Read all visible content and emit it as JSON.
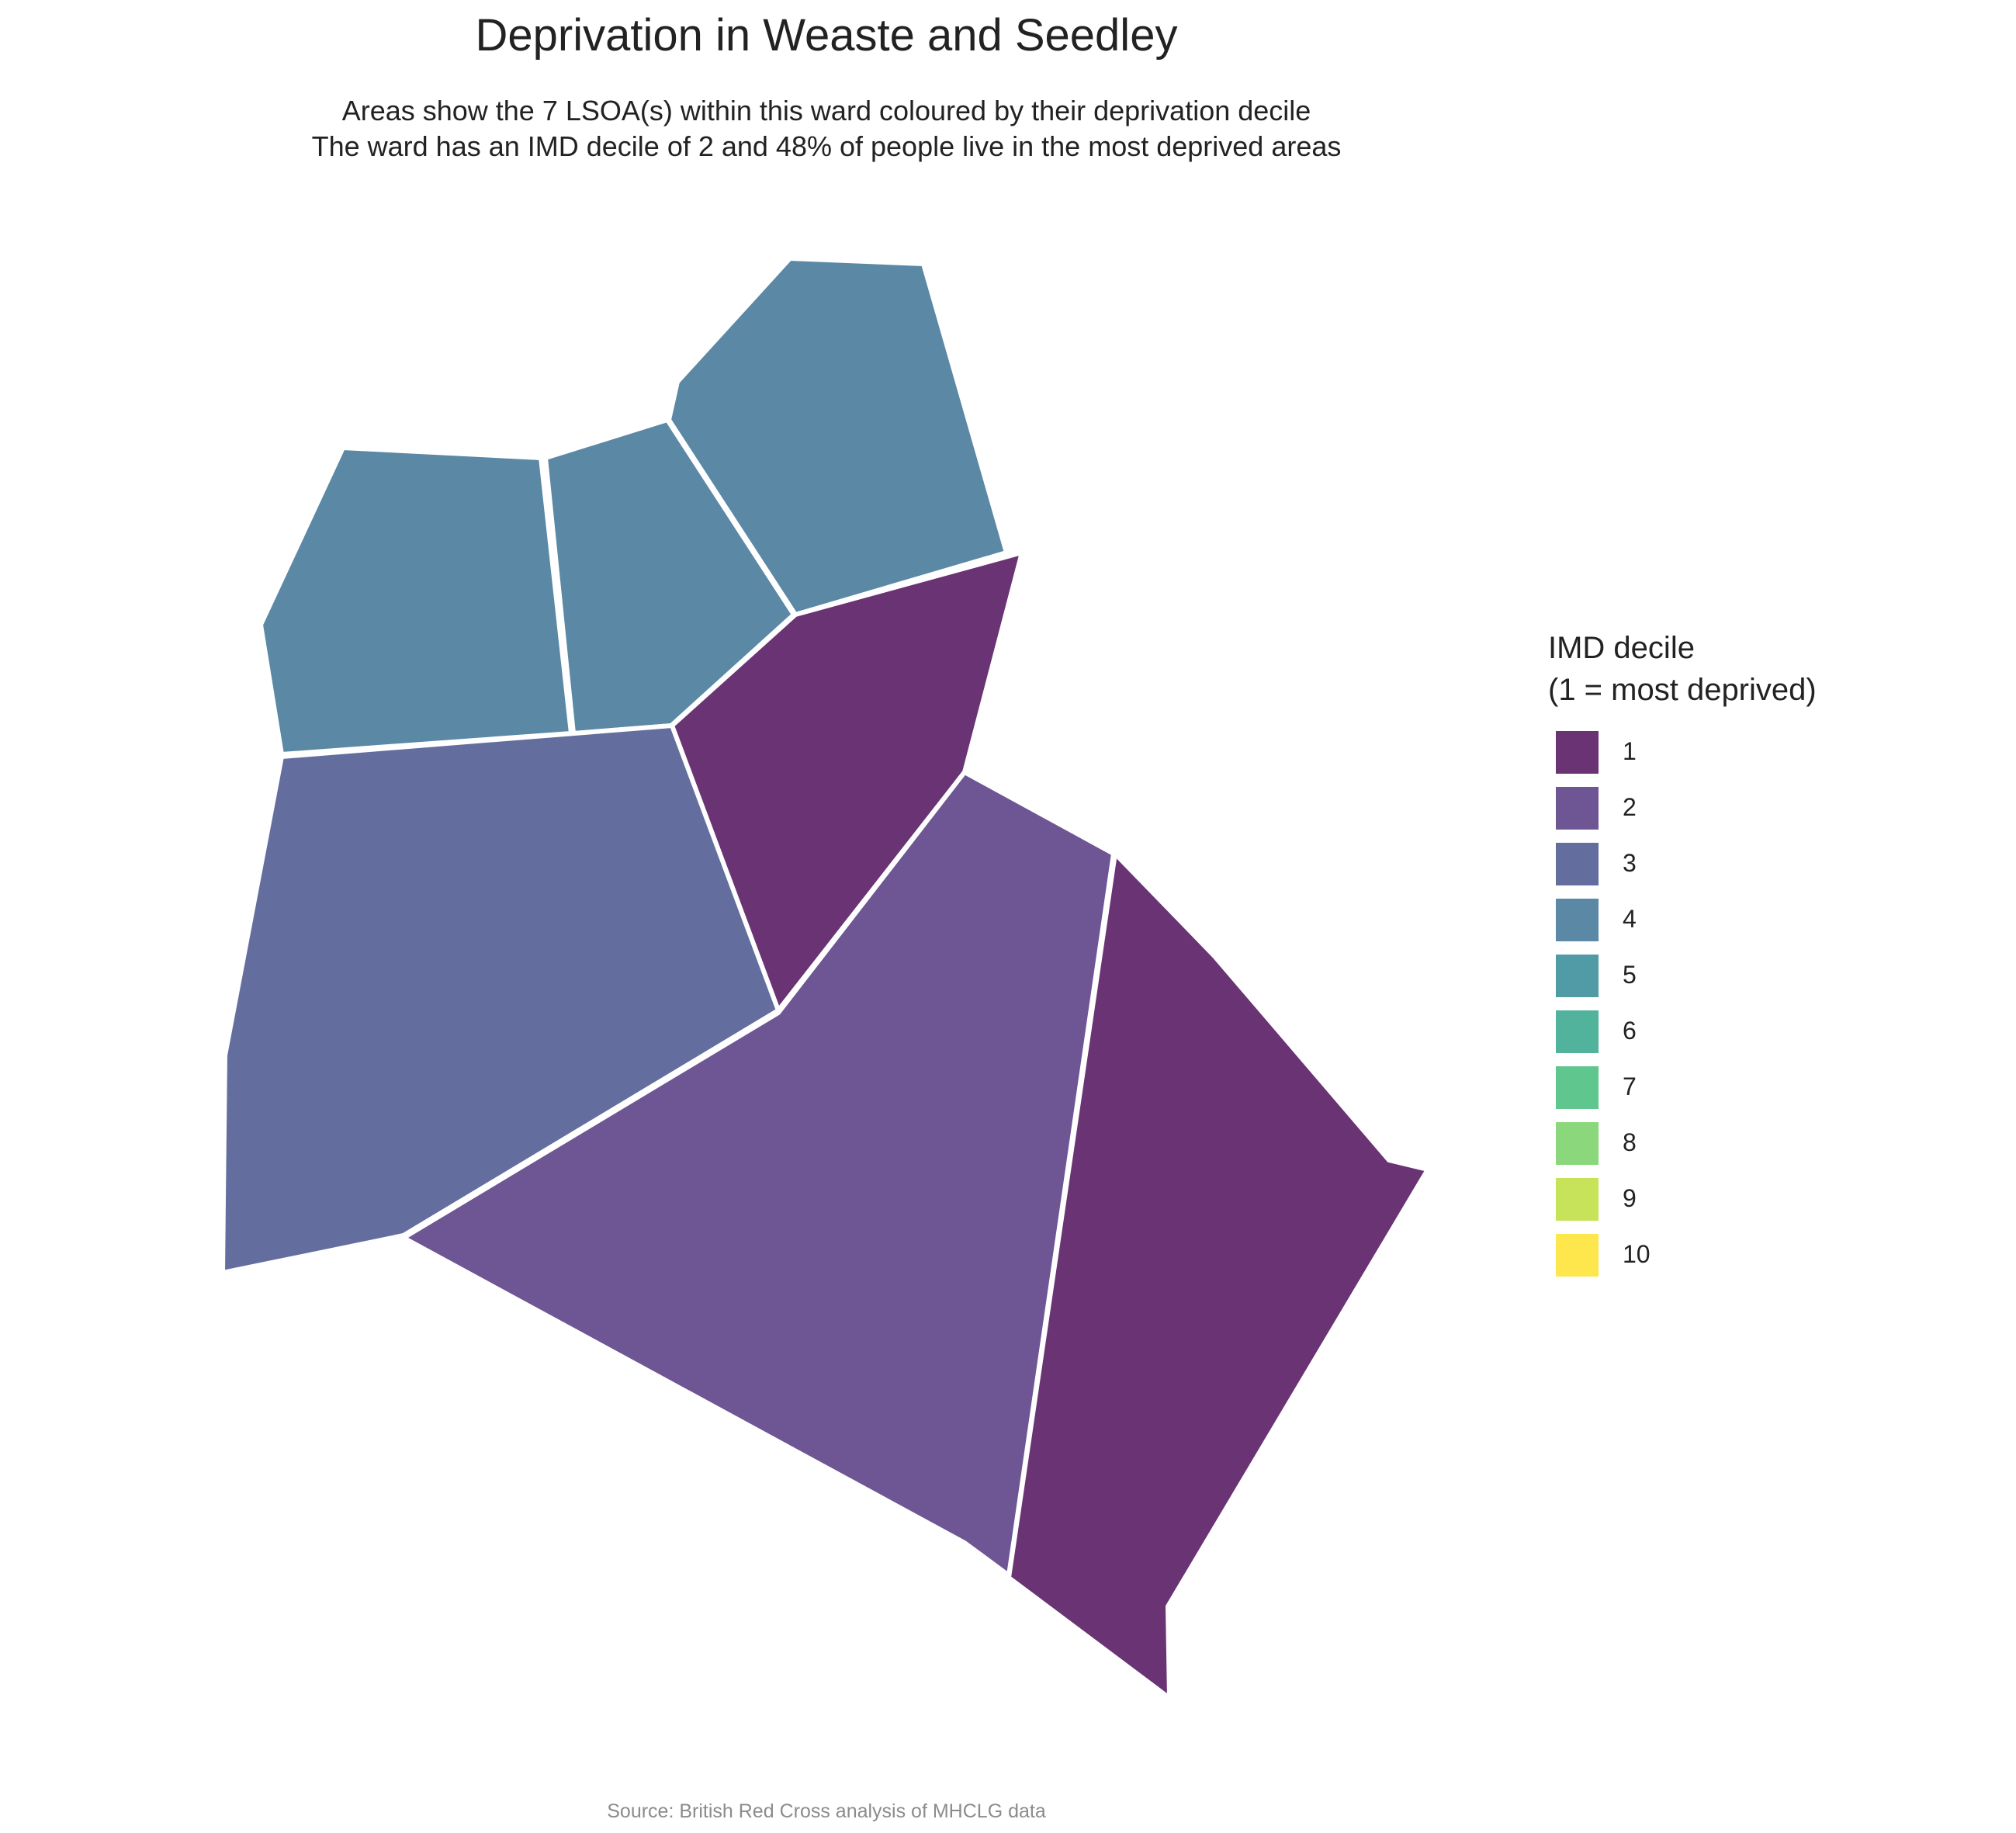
{
  "title": "Deprivation in Weaste and Seedley",
  "subtitle_line1": "Areas show the 7 LSOA(s) within this ward coloured by their deprivation decile",
  "subtitle_line2": "The ward has an IMD decile of 2 and 48% of people live in the most deprived areas",
  "legend": {
    "title_line1": "IMD decile",
    "title_line2": "(1 = most deprived)",
    "items": [
      {
        "label": "1",
        "color": "#6a3374"
      },
      {
        "label": "2",
        "color": "#6e5593"
      },
      {
        "label": "3",
        "color": "#646e9e"
      },
      {
        "label": "4",
        "color": "#5a88a5"
      },
      {
        "label": "5",
        "color": "#519ba7"
      },
      {
        "label": "6",
        "color": "#51b39b"
      },
      {
        "label": "7",
        "color": "#5fc78e"
      },
      {
        "label": "8",
        "color": "#8ad87b"
      },
      {
        "label": "9",
        "color": "#c6e35a"
      },
      {
        "label": "10",
        "color": "#fde74c"
      }
    ]
  },
  "lsoas": [
    {
      "id": "lsoa-west-north",
      "decile": 4
    },
    {
      "id": "lsoa-centre-north",
      "decile": 4
    },
    {
      "id": "lsoa-north-east",
      "decile": 4
    },
    {
      "id": "lsoa-centre-east",
      "decile": 1
    },
    {
      "id": "lsoa-west",
      "decile": 3
    },
    {
      "id": "lsoa-south-centre",
      "decile": 2
    },
    {
      "id": "lsoa-south-east",
      "decile": 1
    }
  ],
  "caption": "Source: British Red Cross analysis of MHCLG data"
}
